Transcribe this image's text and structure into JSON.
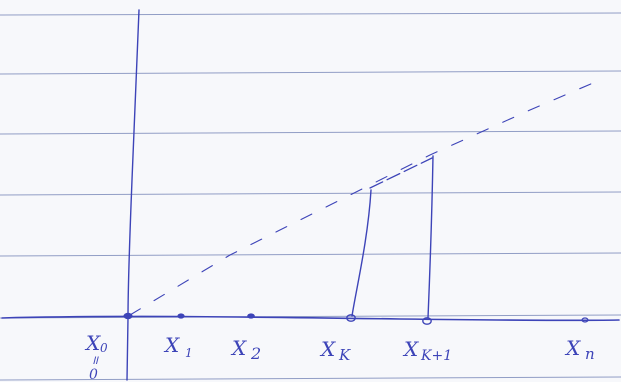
{
  "labels": {
    "x0": "X",
    "x0_sub": "0",
    "x0_equal": "॥",
    "x0_zero": "0",
    "x1": "X",
    "x1_sub": "1",
    "x2": "X",
    "x2_sub": "2",
    "xk": "X",
    "xk_sub": "K",
    "xk1": "X",
    "xk1_sub": "K+1",
    "xn": "X",
    "xn_sub": "n"
  },
  "colors": {
    "ink": "#3d44b8",
    "ruling": "#6f7fb3",
    "paper": "#f7f8fb"
  }
}
